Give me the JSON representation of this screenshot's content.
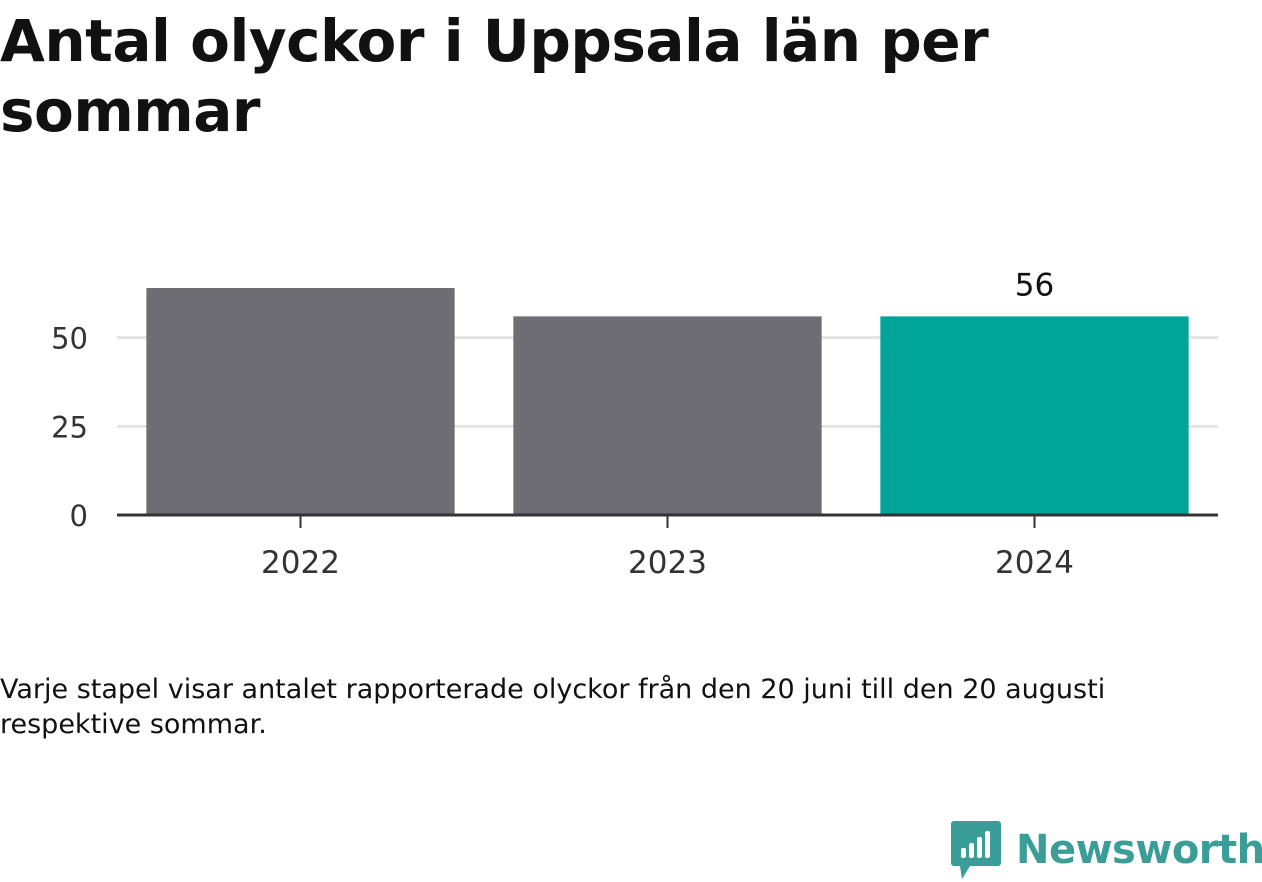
{
  "title": "Antal olyckor i Uppsala län per sommar",
  "note": "Varje stapel visar antalet rapporterade olyckor från den 20 juni till den 20 augusti respektive sommar.",
  "brand": {
    "name": "Newsworthy",
    "icon": "newsworthy-logo-icon",
    "color": "#3a9d98"
  },
  "chart_data": {
    "type": "bar",
    "categories": [
      "2022",
      "2023",
      "2024"
    ],
    "values": [
      64,
      56,
      56
    ],
    "data_labels": [
      "",
      "",
      "56"
    ],
    "colors": [
      "#6e6d73",
      "#6e6d73",
      "#00a499"
    ],
    "yticks": [
      0,
      25,
      50
    ],
    "ytick_labels": [
      "0",
      "25",
      "50"
    ],
    "ylim": [
      0,
      75
    ],
    "grid": true,
    "xlabel": "",
    "ylabel": ""
  }
}
